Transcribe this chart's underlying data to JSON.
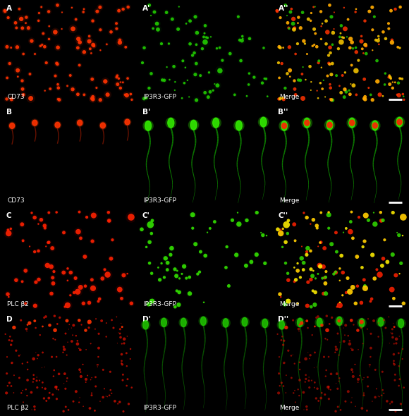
{
  "figsize": [
    5.8,
    5.9
  ],
  "dpi": 100,
  "nrows": 4,
  "ncols": 3,
  "bg_color": "#000000",
  "panel_labels": [
    [
      "A",
      "A'",
      "A''"
    ],
    [
      "B",
      "B'",
      "B''"
    ],
    [
      "C",
      "C'",
      "C''"
    ],
    [
      "D",
      "D'",
      "D''"
    ]
  ],
  "bottom_labels": [
    [
      "CD73",
      "IP3R3-GFP",
      "Merge"
    ],
    [
      "CD73",
      "IP3R3-GFP",
      "Merge"
    ],
    [
      "PLC β2",
      "IP3R3-GFP",
      "Merge"
    ],
    [
      "PLC β2",
      "IP3R3-GFP",
      "Merge"
    ]
  ],
  "label_color": "#ffffff",
  "label_fontsize": 6.5,
  "panel_label_fontsize": 7.5,
  "scale_bar_color": "#ffffff"
}
